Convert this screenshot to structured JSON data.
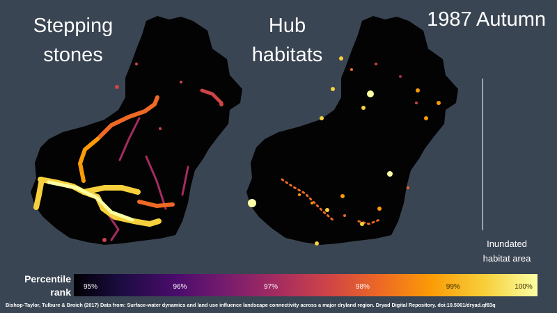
{
  "titles": {
    "left_line1": "Stepping",
    "left_line2": "stones",
    "mid_line1": "Hub",
    "mid_line2": "habitats",
    "year": "1987 Autumn"
  },
  "legend": {
    "habitat_line1": "Inundated",
    "habitat_line2": "habitat area",
    "colorbar_title_line1": "Percentile",
    "colorbar_title_line2": "rank",
    "ticks": [
      "95%",
      "96%",
      "97%",
      "98%",
      "99%",
      "100%"
    ]
  },
  "citation": "Bishop-Taylor, Tulbure & Broich (2017) Data from: Surface-water dynamics and land use influence landscape connectivity across a major dryland region. Dryad Digital Repository. doi:10.5061/dryad.qf83q",
  "colors": {
    "background": "#3a4553",
    "region": "#030303",
    "ramp": [
      "#000004",
      "#4a0c6b",
      "#a52c60",
      "#ed6925",
      "#fb9b06",
      "#f7d13d",
      "#fcffa4"
    ]
  }
}
